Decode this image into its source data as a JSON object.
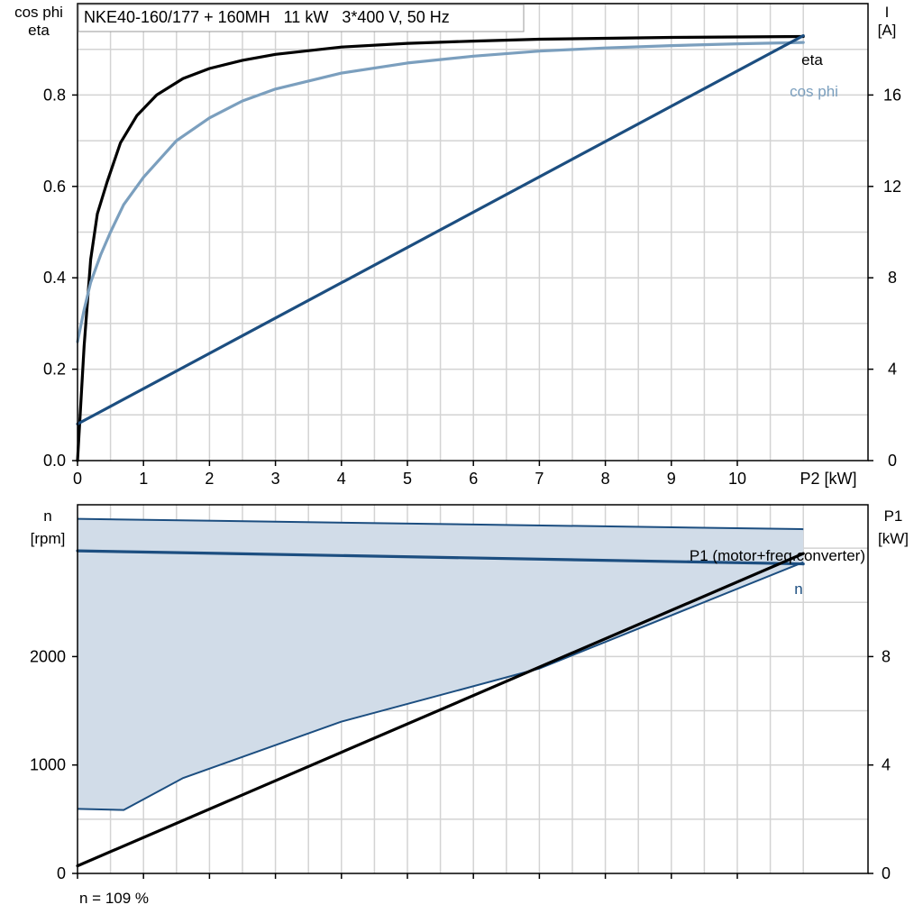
{
  "chart_data": [
    {
      "type": "line",
      "title": "NKE40-160/177 + 160MH   11 kW   3*400 V, 50 Hz",
      "x_axis": {
        "label": "P2 [kW]",
        "range": [
          0,
          11
        ],
        "ticks": [
          "0",
          "1",
          "2",
          "3",
          "4",
          "5",
          "6",
          "7",
          "8",
          "9",
          "10"
        ]
      },
      "y_left": {
        "label_lines": [
          "cos phi",
          "eta"
        ],
        "range": [
          0,
          1.0
        ],
        "ticks": [
          "0.0",
          "0.2",
          "0.4",
          "0.6",
          "0.8"
        ]
      },
      "y_right": {
        "label_lines": [
          "I",
          "[A]"
        ],
        "range": [
          0,
          20
        ],
        "ticks": [
          "0",
          "4",
          "8",
          "12",
          "16"
        ]
      },
      "grid": true,
      "series": [
        {
          "name": "eta",
          "axis": "left",
          "color": "#000000",
          "x": [
            0.0,
            0.1,
            0.2,
            0.3,
            0.45,
            0.65,
            0.9,
            1.2,
            1.6,
            2.0,
            2.5,
            3.0,
            4.0,
            5.0,
            6.0,
            7.0,
            8.0,
            9.0,
            10.0,
            11.0
          ],
          "y": [
            0.0,
            0.25,
            0.44,
            0.54,
            0.61,
            0.695,
            0.755,
            0.8,
            0.836,
            0.858,
            0.876,
            0.889,
            0.905,
            0.913,
            0.918,
            0.922,
            0.924,
            0.926,
            0.927,
            0.928
          ]
        },
        {
          "name": "cos phi",
          "axis": "left",
          "color": "#7b9fbe",
          "x": [
            0.0,
            0.1,
            0.2,
            0.35,
            0.5,
            0.7,
            1.0,
            1.5,
            2.0,
            2.5,
            3.0,
            4.0,
            5.0,
            6.0,
            7.0,
            8.0,
            9.0,
            10.0,
            11.0
          ],
          "y": [
            0.26,
            0.33,
            0.39,
            0.45,
            0.5,
            0.56,
            0.62,
            0.7,
            0.75,
            0.787,
            0.813,
            0.848,
            0.87,
            0.885,
            0.896,
            0.903,
            0.908,
            0.912,
            0.915
          ]
        },
        {
          "name": "I",
          "axis": "right",
          "color": "#1c4e80",
          "x": [
            0.0,
            11.0
          ],
          "y": [
            1.6,
            18.6
          ]
        }
      ]
    },
    {
      "type": "area",
      "x_axis": {
        "range": [
          0,
          11
        ]
      },
      "y_left": {
        "label_lines": [
          "n",
          "[rpm]"
        ],
        "range": [
          0,
          3400
        ],
        "ticks": [
          "0",
          "1000",
          "2000"
        ]
      },
      "y_right": {
        "label_lines": [
          "P1",
          "[kW]"
        ],
        "range": [
          0,
          13.6
        ],
        "ticks": [
          "0",
          "4",
          "8"
        ]
      },
      "grid": true,
      "operating_range": {
        "color": "#d1dce8",
        "edge_color": "#1c4e80",
        "upper": {
          "x": [
            0.0,
            11.0
          ],
          "y": [
            3270,
            3175
          ]
        },
        "lower": {
          "x": [
            0.0,
            0.7,
            1.6,
            4.0,
            7.0,
            11.0
          ],
          "y": [
            595,
            585,
            880,
            1400,
            1890,
            2870
          ]
        }
      },
      "series": [
        {
          "name": "n",
          "axis": "left",
          "color": "#1c4e80",
          "x": [
            0.0,
            11.0
          ],
          "y": [
            2975,
            2855
          ]
        },
        {
          "name": "P1 (motor+freq.converter)",
          "axis": "right",
          "color": "#000000",
          "x": [
            0.0,
            11.0
          ],
          "y": [
            0.28,
            11.8
          ]
        }
      ],
      "footnote": "n = 109 %"
    }
  ]
}
